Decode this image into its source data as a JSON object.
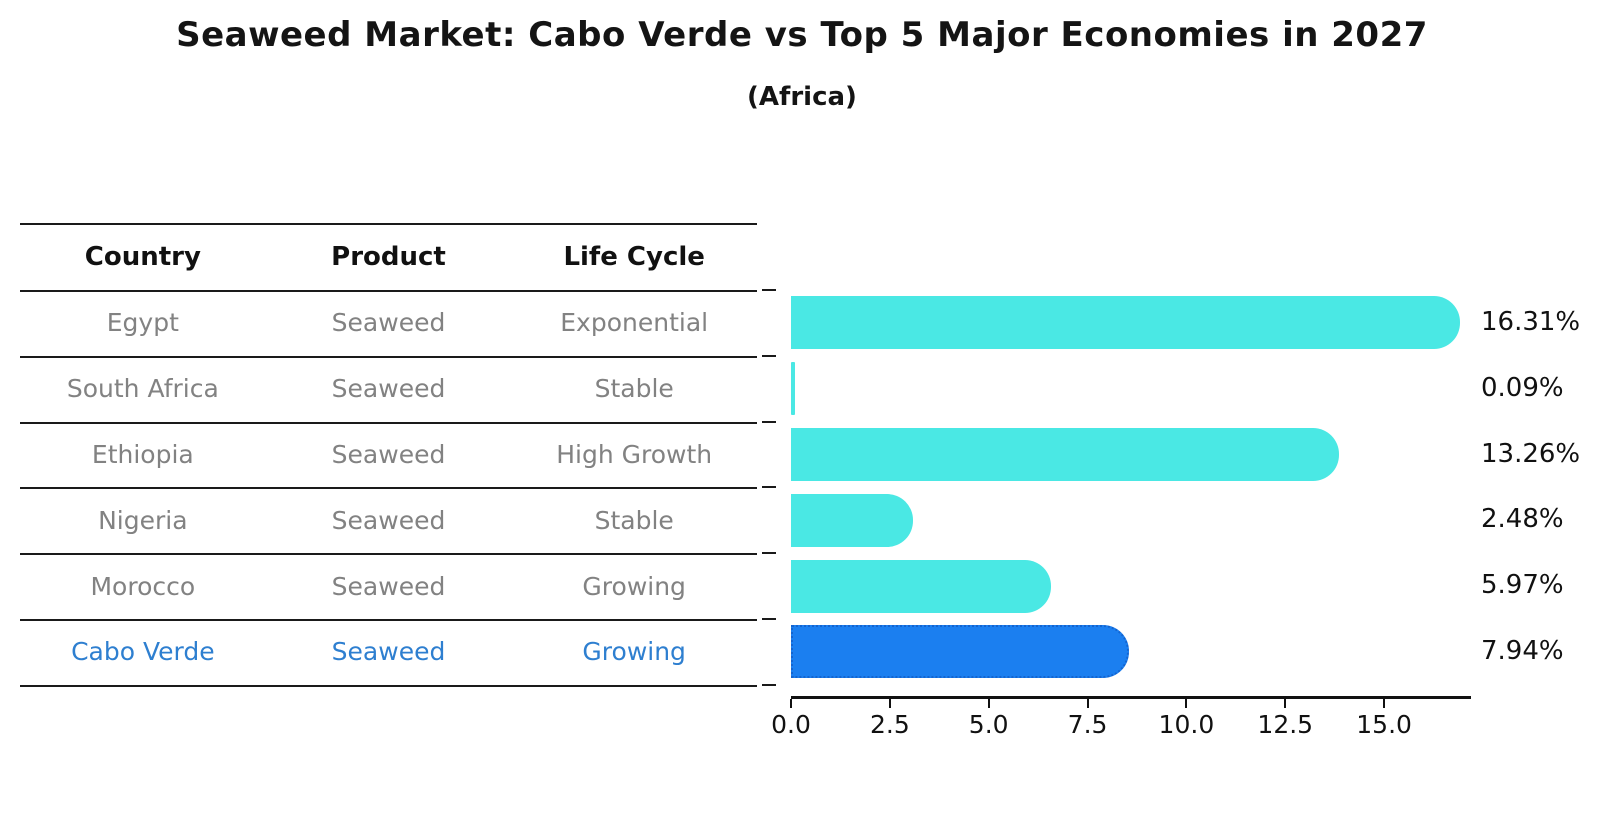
{
  "title": "Seaweed Market: Cabo Verde vs Top 5 Major Economies in 2027",
  "subtitle": "(Africa)",
  "table": {
    "columns": [
      "Country",
      "Product",
      "Life Cycle"
    ],
    "rows": [
      {
        "country": "Egypt",
        "product": "Seaweed",
        "life_cycle": "Exponential",
        "highlighted": false
      },
      {
        "country": "South Africa",
        "product": "Seaweed",
        "life_cycle": "Stable",
        "highlighted": false
      },
      {
        "country": "Ethiopia",
        "product": "Seaweed",
        "life_cycle": "High Growth",
        "highlighted": false
      },
      {
        "country": "Nigeria",
        "product": "Seaweed",
        "life_cycle": "Stable",
        "highlighted": false
      },
      {
        "country": "Morocco",
        "product": "Seaweed",
        "life_cycle": "Growing",
        "highlighted": false
      },
      {
        "country": "Cabo Verde",
        "product": "Seaweed",
        "life_cycle": "Growing",
        "highlighted": true
      }
    ]
  },
  "chart_data": {
    "type": "bar",
    "orientation": "horizontal",
    "title": "Seaweed Market: Cabo Verde vs Top 5 Major Economies in 2027",
    "subtitle": "(Africa)",
    "categories": [
      "Egypt",
      "South Africa",
      "Ethiopia",
      "Nigeria",
      "Morocco",
      "Cabo Verde"
    ],
    "values": [
      16.31,
      0.09,
      13.26,
      2.48,
      5.97,
      7.94
    ],
    "value_labels": [
      "16.31%",
      "0.09%",
      "13.26%",
      "2.48%",
      "5.97%",
      "7.94%"
    ],
    "unit": "%",
    "x_ticks": [
      0.0,
      2.5,
      5.0,
      7.5,
      10.0,
      12.5,
      15.0
    ],
    "x_tick_labels": [
      "0.0",
      "2.5",
      "5.0",
      "7.5",
      "10.0",
      "12.5",
      "15.0"
    ],
    "xlim": [
      0,
      17.2
    ],
    "grid": false,
    "legend": false,
    "highlight_index": 5,
    "colors": {
      "bar": "#4AE8E4",
      "highlight_bar": "#1B7FF0",
      "highlight_border": "#1464CF",
      "value_label": "#111111",
      "table_text": "#828282",
      "highlight_text": "#2E7FD0",
      "line": "#1A1A1A"
    }
  }
}
